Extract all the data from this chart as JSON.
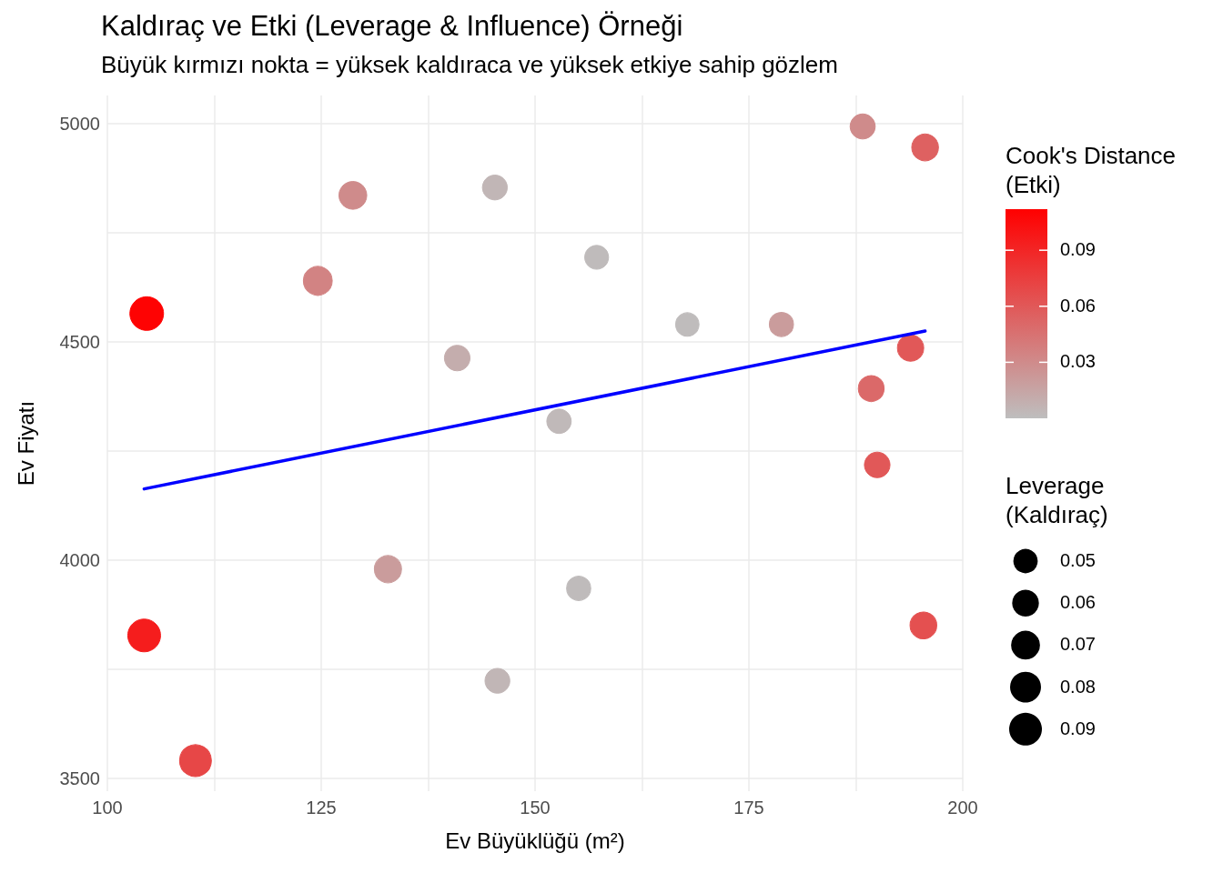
{
  "chart_data": {
    "type": "bubble",
    "title": "Kaldıraç ve Etki (Leverage & Influence) Örneği",
    "subtitle": "Büyük kırmızı nokta = yüksek kaldıraca ve yüksek etkiye sahip gözlem",
    "xlabel": "Ev Büyüklüğü (m²)",
    "ylabel": "Ev Fiyatı",
    "clabel": "Cook's Distance\n(Etki)",
    "legend_title": "Leverage\n(Kaldıraç)",
    "xlim": [
      100,
      200
    ],
    "xticks": [
      100,
      {
        "value": 112.5,
        "label": null
      },
      125,
      {
        "value": 137.5,
        "label": null
      },
      150,
      {
        "value": 162.5,
        "label": null
      },
      175,
      {
        "value": 187.5,
        "label": null
      },
      200
    ],
    "ylim": [
      3470,
      5065
    ],
    "yticks": [
      3500,
      {
        "value": 3750,
        "label": null
      },
      4000,
      {
        "value": 4250,
        "label": null
      },
      4500,
      {
        "value": 4750,
        "label": null
      },
      5000
    ],
    "clim": [
      0,
      0.112
    ],
    "cticks": [
      0.03,
      0.06,
      0.09
    ],
    "size_legend": [
      0.05,
      0.06,
      0.07,
      0.08,
      0.09
    ],
    "grid": true,
    "series": [
      {
        "x": [
          104.6,
          104.3,
          110.3,
          124.6,
          128.7,
          132.8,
          140.9,
          145.3,
          145.6,
          152.8,
          155.1,
          157.2,
          167.8,
          178.8,
          188.3,
          195.6,
          193.9,
          189.3,
          190.0,
          195.4
        ],
        "values": [
          4565,
          3827,
          3540,
          4640,
          4836,
          3979,
          4463,
          4854,
          3723,
          4318,
          3935,
          4694,
          4540,
          4540,
          4994,
          4946,
          4486,
          4393,
          4218,
          3850
        ],
        "sizes": [
          0.095,
          0.09,
          0.085,
          0.07,
          0.065,
          0.062,
          0.055,
          0.052,
          0.052,
          0.05,
          0.049,
          0.048,
          0.046,
          0.049,
          0.053,
          0.06,
          0.058,
          0.056,
          0.055,
          0.06
        ],
        "colors": [
          "#fe0303",
          "#f51d1d",
          "#e74747",
          "#d28383",
          "#cf8b8b",
          "#ca9c9c",
          "#c4adad",
          "#c1b6b6",
          "#c1b6b6",
          "#c0b9b9",
          "#bfbbbb",
          "#bfbbbb",
          "#bfbcbc",
          "#ca9c9c",
          "#cf8b8b",
          "#de6161",
          "#e15858",
          "#db6969",
          "#e15858",
          "#e45050"
        ],
        "cvalues": [
          0.11,
          0.095,
          0.07,
          0.035,
          0.03,
          0.02,
          0.01,
          0.005,
          0.005,
          0.003,
          0.002,
          0.002,
          0.001,
          0.02,
          0.03,
          0.055,
          0.06,
          0.05,
          0.06,
          0.065
        ]
      },
      {
        "type": "line",
        "color": "#0000ff",
        "x": [
          104.3,
          195.6
        ],
        "values": [
          4163,
          4525
        ]
      }
    ]
  }
}
